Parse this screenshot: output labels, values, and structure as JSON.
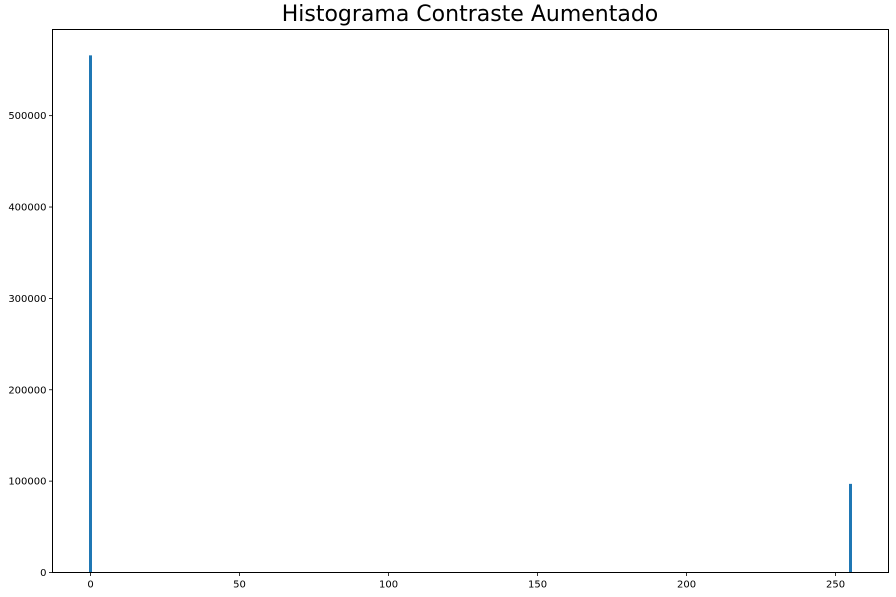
{
  "chart_data": {
    "type": "bar",
    "title": "Histograma Contraste Aumentado",
    "xlabel": "",
    "ylabel": "",
    "x": [
      0,
      255
    ],
    "values": [
      566000,
      97000
    ],
    "xlim": [
      -12.75,
      267.75
    ],
    "ylim": [
      0,
      594300
    ],
    "x_ticks": [
      0,
      50,
      100,
      150,
      200,
      250
    ],
    "y_ticks": [
      0,
      100000,
      200000,
      300000,
      400000,
      500000
    ],
    "grid": false,
    "bar_color": "#1f77b4"
  }
}
